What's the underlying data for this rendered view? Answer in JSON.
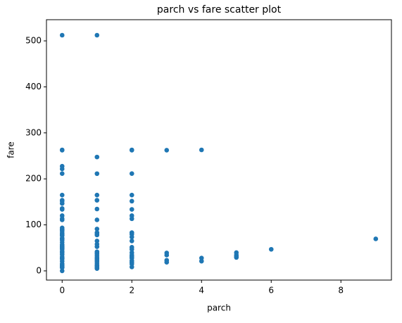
{
  "chart_data": {
    "type": "scatter",
    "title": "parch vs fare scatter plot",
    "xlabel": "parch",
    "ylabel": "fare",
    "color": "#1f77b4",
    "x": [
      0,
      0,
      0,
      0,
      0,
      0,
      0,
      0,
      0,
      0,
      0,
      0,
      0,
      0,
      0,
      0,
      0,
      0,
      0,
      0,
      0,
      0,
      0,
      0,
      0,
      0,
      0,
      0,
      0,
      0,
      0,
      0,
      0,
      0,
      0,
      0,
      0,
      0,
      0,
      0,
      0,
      0,
      0,
      0,
      0,
      0,
      0,
      0,
      0,
      1,
      1,
      1,
      1,
      1,
      1,
      1,
      1,
      1,
      1,
      1,
      1,
      1,
      1,
      1,
      1,
      1,
      1,
      1,
      1,
      1,
      1,
      1,
      1,
      1,
      1,
      1,
      1,
      2,
      2,
      2,
      2,
      2,
      2,
      2,
      2,
      2,
      2,
      2,
      2,
      2,
      2,
      2,
      2,
      2,
      2,
      2,
      2,
      2,
      2,
      3,
      3,
      3,
      3,
      3,
      4,
      4,
      4,
      5,
      5,
      5,
      5,
      6,
      9
    ],
    "values": [
      512.33,
      263,
      262.38,
      227.53,
      221.78,
      211.5,
      164.87,
      153.46,
      151.55,
      146.52,
      135.63,
      133.65,
      120,
      113.28,
      110.88,
      93.5,
      90,
      89.1,
      86.5,
      82.17,
      79.2,
      77.29,
      76.73,
      71.28,
      69.3,
      66.6,
      61.98,
      57,
      55,
      53.1,
      52,
      50,
      49.5,
      47.1,
      42.4,
      39.6,
      35.5,
      30.5,
      27.72,
      26.55,
      26,
      21,
      15.5,
      13,
      10.5,
      8.05,
      7.75,
      7.25,
      0,
      512.33,
      247.52,
      211.34,
      164.87,
      153.46,
      134.5,
      110.88,
      91.08,
      83.16,
      79.65,
      77.96,
      65,
      57.98,
      52.55,
      41.58,
      39,
      36.75,
      33,
      29.13,
      26.25,
      23,
      20.52,
      16.7,
      12.48,
      11.13,
      9.35,
      7.23,
      5,
      263,
      262.38,
      211.5,
      164.87,
      151.55,
      133.65,
      120,
      113.28,
      83.16,
      79.65,
      73.5,
      65,
      51.48,
      46.9,
      39.69,
      34.38,
      31.39,
      27.9,
      22.36,
      18.75,
      15.25,
      8.52,
      262.38,
      39,
      34.38,
      23,
      18.75,
      263,
      27.9,
      21.08,
      39.69,
      34.38,
      31.28,
      29.13,
      46.9,
      69.55
    ],
    "xlim": [
      -0.45,
      9.45
    ],
    "xticks": [
      0,
      2,
      4,
      6,
      8
    ],
    "ylim": [
      -20,
      546
    ],
    "yticks": [
      0,
      100,
      200,
      300,
      400,
      500
    ]
  }
}
